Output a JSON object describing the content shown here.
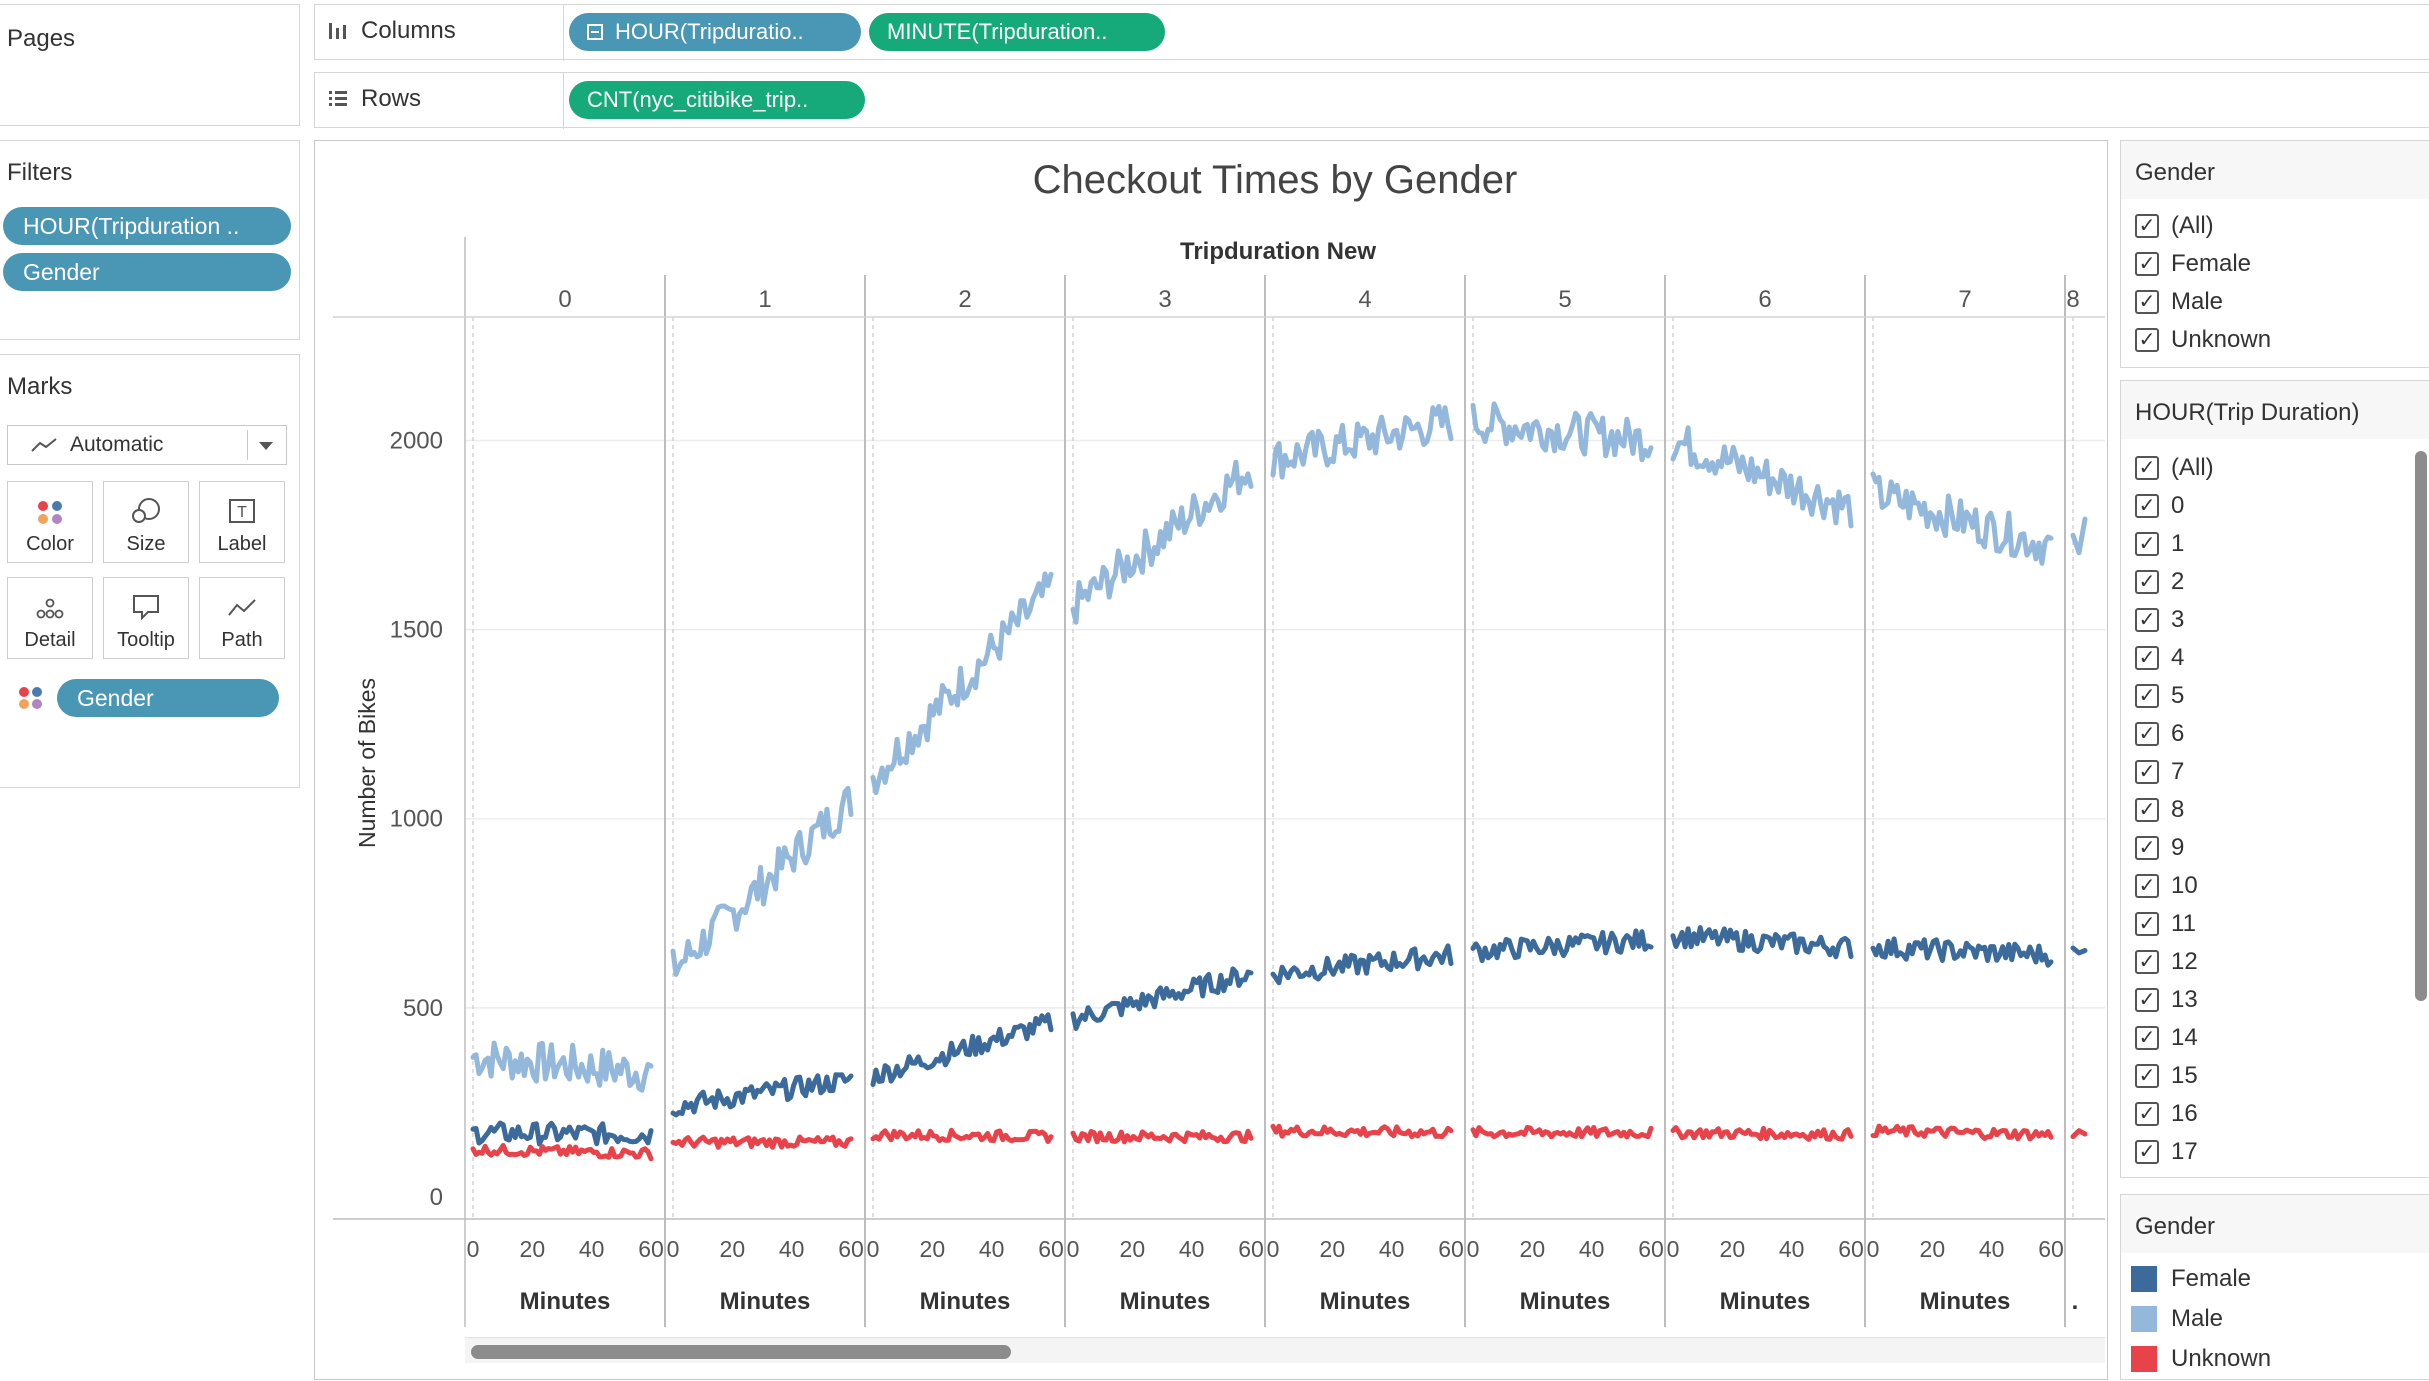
{
  "shelves": {
    "pages_label": "Pages",
    "columns_label": "Columns",
    "rows_label": "Rows",
    "columns_pills": [
      "HOUR(Tripduratio..",
      "MINUTE(Tripduration.."
    ],
    "rows_pills": [
      "CNT(nyc_citibike_trip.."
    ]
  },
  "filters": {
    "title": "Filters",
    "items": [
      "HOUR(Tripduration ..",
      "Gender"
    ]
  },
  "marks": {
    "title": "Marks",
    "type": "Automatic",
    "buttons": [
      {
        "label": "Color",
        "icon": "color-dots-icon"
      },
      {
        "label": "Size",
        "icon": "size-circles-icon"
      },
      {
        "label": "Label",
        "icon": "label-t-icon"
      },
      {
        "label": "Detail",
        "icon": "detail-dots-icon"
      },
      {
        "label": "Tooltip",
        "icon": "tooltip-bubble-icon"
      },
      {
        "label": "Path",
        "icon": "path-line-icon"
      }
    ],
    "color_field": "Gender"
  },
  "gender_filter": {
    "title": "Gender",
    "options": [
      "(All)",
      "Female",
      "Male",
      "Unknown"
    ]
  },
  "hour_filter": {
    "title": "HOUR(Trip Duration)",
    "options": [
      "(All)",
      "0",
      "1",
      "2",
      "3",
      "4",
      "5",
      "6",
      "7",
      "8",
      "9",
      "10",
      "11",
      "12",
      "13",
      "14",
      "15",
      "16",
      "17"
    ]
  },
  "legend": {
    "title": "Gender",
    "items": [
      {
        "label": "Female",
        "color": "#3b6a9b"
      },
      {
        "label": "Male",
        "color": "#93b8dc"
      },
      {
        "label": "Unknown",
        "color": "#e8434b"
      }
    ]
  },
  "chart_data": {
    "type": "line",
    "title": "Checkout Times by Gender",
    "column_header_title": "Tripduration New",
    "panels": [
      "0",
      "1",
      "2",
      "3",
      "4",
      "5",
      "6",
      "7",
      "8"
    ],
    "ylabel": "Number of Bikes",
    "xlabel": "Minutes",
    "ylim": [
      0,
      2300
    ],
    "yticks": [
      0,
      500,
      1000,
      1500,
      2000
    ],
    "xticks": [
      0,
      20,
      40,
      60
    ],
    "xlim_per_panel": [
      0,
      60
    ],
    "grid": true,
    "series": [
      {
        "name": "Male",
        "color": "#93b8dc",
        "panel_start": [
          370,
          600,
          1110,
          1560,
          1950,
          2050,
          2000,
          1860,
          1700
        ],
        "panel_end": [
          330,
          1050,
          1610,
          1930,
          2050,
          2000,
          1820,
          1720,
          1750
        ]
      },
      {
        "name": "Female",
        "color": "#3b6a9b",
        "panel_start": [
          170,
          240,
          320,
          470,
          590,
          650,
          690,
          660,
          640
        ],
        "panel_end": [
          165,
          310,
          460,
          590,
          640,
          680,
          660,
          640,
          640
        ]
      },
      {
        "name": "Unknown",
        "color": "#e8434b",
        "panel_start": [
          125,
          145,
          165,
          160,
          175,
          170,
          170,
          175,
          170
        ],
        "panel_end": [
          115,
          145,
          160,
          160,
          170,
          170,
          165,
          165,
          165
        ]
      }
    ]
  }
}
